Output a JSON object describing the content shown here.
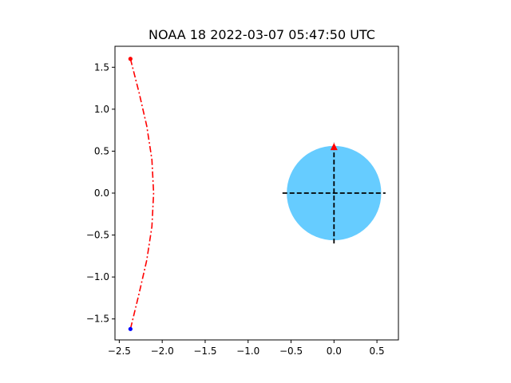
{
  "chart_data": {
    "type": "line",
    "title": "NOAA 18   2022-03-07   05:47:50 UTC",
    "xlabel": "",
    "ylabel": "",
    "xlim": [
      -2.55,
      0.75
    ],
    "ylim": [
      -1.75,
      1.75
    ],
    "x_ticks": [
      -2.5,
      -2.0,
      -1.5,
      -1.0,
      -0.5,
      0.0,
      0.5
    ],
    "x_tick_labels": [
      "−2.5",
      "−2.0",
      "−1.5",
      "−1.0",
      "−0.5",
      "0.0",
      "0.5"
    ],
    "y_ticks": [
      1.5,
      1.0,
      0.5,
      0.0,
      -0.5,
      -1.0,
      -1.5
    ],
    "y_tick_labels": [
      "1.5",
      "1.0",
      "0.5",
      "0.0",
      "−0.5",
      "−1.0",
      "−1.5"
    ],
    "grid": false,
    "series": [
      {
        "style": "dash-dot",
        "color": "#ff0000",
        "x": [
          -2.37,
          -2.27,
          -2.18,
          -2.12,
          -2.1,
          -2.12,
          -2.18,
          -2.27,
          -2.37
        ],
        "y": [
          1.6,
          1.2,
          0.8,
          0.4,
          0.0,
          -0.4,
          -0.8,
          -1.2,
          -1.62
        ]
      }
    ],
    "markers": [
      {
        "x": -2.37,
        "y": 1.6,
        "color": "#ff0000"
      },
      {
        "x": -2.37,
        "y": -1.62,
        "color": "#0000ff"
      }
    ],
    "disk": {
      "cx": 0.0,
      "cy": 0.0,
      "r": 0.55,
      "color": "#66ccff"
    },
    "crosshair": {
      "x_range": [
        -0.6,
        0.6
      ],
      "y_range": [
        -0.6,
        0.6
      ],
      "color": "#000000"
    },
    "arrow": {
      "x": 0.0,
      "y": 0.55,
      "color": "#ff0000"
    }
  }
}
